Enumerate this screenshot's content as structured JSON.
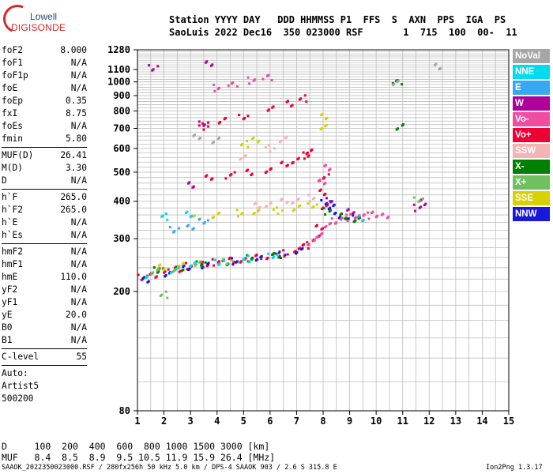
{
  "logo": {
    "line1": "Lowell",
    "line2": "DIGISONDE"
  },
  "header": {
    "line1": "Station YYYY DAY   DDD HHMMSS P1  FFS  S  AXN  PPS  IGA  PS",
    "line2": "SaoLuis 2022 Dec16  350 023000 RSF       1  715  100  00-  11"
  },
  "params": {
    "group1": [
      {
        "k": "foF2",
        "v": "8.000"
      },
      {
        "k": "foF1",
        "v": "N/A"
      },
      {
        "k": "foF1p",
        "v": "N/A"
      },
      {
        "k": "foE",
        "v": "N/A"
      },
      {
        "k": "foEp",
        "v": "0.35"
      },
      {
        "k": "fxI",
        "v": "8.75"
      },
      {
        "k": "foEs",
        "v": "N/A"
      },
      {
        "k": "fmin",
        "v": "5.80"
      }
    ],
    "group2": [
      {
        "k": "MUF(D)",
        "v": "26.41"
      },
      {
        "k": "M(D)",
        "v": "3.30"
      },
      {
        "k": "D",
        "v": "N/A"
      }
    ],
    "group3": [
      {
        "k": "h`F",
        "v": "265.0"
      },
      {
        "k": "h`F2",
        "v": "265.0"
      },
      {
        "k": "h`E",
        "v": "N/A"
      },
      {
        "k": "h`Es",
        "v": "N/A"
      }
    ],
    "group4": [
      {
        "k": "hmF2",
        "v": "N/A"
      },
      {
        "k": "hmF1",
        "v": "N/A"
      },
      {
        "k": "hmE",
        "v": "110.0"
      },
      {
        "k": "yF2",
        "v": "N/A"
      },
      {
        "k": "yF1",
        "v": "N/A"
      },
      {
        "k": "yE",
        "v": "20.0"
      },
      {
        "k": "B0",
        "v": "N/A"
      },
      {
        "k": "B1",
        "v": "N/A"
      }
    ],
    "group5": [
      {
        "k": "C-level",
        "v": "55"
      }
    ],
    "auto": [
      "Auto:",
      "Artist5",
      "500200"
    ]
  },
  "legend": [
    {
      "label": "NoVal",
      "color": "#a6a6a6"
    },
    {
      "label": "NNE",
      "color": "#00dcef"
    },
    {
      "label": "E",
      "color": "#38a8f0"
    },
    {
      "label": "W",
      "color": "#b0009c"
    },
    {
      "label": "Vo-",
      "color": "#f04ca0"
    },
    {
      "label": "Vo+",
      "color": "#ee0033"
    },
    {
      "label": "SSW",
      "color": "#f4b4b4"
    },
    {
      "label": "X-",
      "color": "#008000"
    },
    {
      "label": "X+",
      "color": "#70c060"
    },
    {
      "label": "SSE",
      "color": "#d8d000"
    },
    {
      "label": "NNW",
      "color": "#1818d8"
    }
  ],
  "footer": {
    "line1": "D     100  200  400  600  800 1000 1500 3000 [km]",
    "line2": "MUF   8.4  8.5  8.9  9.5 10.5 11.9 15.9 26.4 [MHz]",
    "info": "SAAOK_2022350023000.RSF / 280fx256h 50 kHz 5.0 km / DPS-4 SAAOK 903 / 2.6 S 315.8 E",
    "version": "Ion2Png 1.3.17"
  },
  "chart_data": {
    "type": "scatter",
    "title": "",
    "xlabel": "",
    "ylabel": "",
    "xlim": [
      1,
      15
    ],
    "ylim": [
      80,
      1280
    ],
    "y_scale": "log",
    "x_ticks": [
      1,
      2,
      3,
      4,
      5,
      6,
      7,
      8,
      9,
      10,
      11,
      12,
      13,
      14,
      15
    ],
    "x_tick_labels": [
      "1",
      "2",
      "3",
      "4",
      "5",
      "6",
      "7",
      "8",
      "9",
      "10",
      "11",
      "12",
      "13",
      "14",
      "15"
    ],
    "y_ticks": [
      80,
      200,
      300,
      400,
      500,
      600,
      700,
      800,
      900,
      1000,
      1100,
      1280
    ],
    "y_tick_labels": [
      "80",
      "200",
      "300",
      "400",
      "500",
      "600",
      "700",
      "800",
      "900",
      "1000",
      "1100",
      "1280"
    ],
    "series": [
      {
        "name": "Vo+",
        "color": "#ee0033",
        "points": [
          [
            1.2,
            222
          ],
          [
            1.6,
            228
          ],
          [
            2.0,
            233
          ],
          [
            2.5,
            238
          ],
          [
            3.0,
            243
          ],
          [
            3.5,
            247
          ],
          [
            4.0,
            250
          ],
          [
            4.5,
            253
          ],
          [
            5.0,
            256
          ],
          [
            5.5,
            259
          ],
          [
            6.0,
            263
          ],
          [
            6.5,
            268
          ],
          [
            7.0,
            275
          ],
          [
            7.4,
            285
          ],
          [
            7.7,
            300
          ],
          [
            7.9,
            330
          ],
          [
            8.0,
            380
          ],
          [
            8.0,
            430
          ],
          [
            8.05,
            480
          ],
          [
            3.7,
            480
          ],
          [
            4.5,
            488
          ],
          [
            5.2,
            497
          ],
          [
            6.0,
            510
          ],
          [
            6.5,
            528
          ],
          [
            7.0,
            548
          ],
          [
            7.3,
            568
          ],
          [
            7.5,
            585
          ],
          [
            3.5,
            710
          ],
          [
            4.2,
            740
          ],
          [
            5.0,
            770
          ],
          [
            6.0,
            808
          ],
          [
            6.8,
            850
          ],
          [
            7.2,
            880
          ]
        ]
      },
      {
        "name": "NNW",
        "color": "#1818d8",
        "points": [
          [
            1.3,
            218
          ],
          [
            2.2,
            230
          ],
          [
            2.8,
            238
          ],
          [
            3.6,
            245
          ],
          [
            4.6,
            252
          ],
          [
            5.6,
            258
          ],
          [
            6.4,
            265
          ],
          [
            7.1,
            272
          ],
          [
            8.1,
            400
          ],
          [
            8.3,
            380
          ],
          [
            8.6,
            360
          ],
          [
            9.0,
            350
          ]
        ]
      },
      {
        "name": "Vo-",
        "color": "#f04ca0",
        "points": [
          [
            7.6,
            290
          ],
          [
            7.8,
            310
          ],
          [
            8.2,
            330
          ],
          [
            8.5,
            345
          ],
          [
            8.8,
            352
          ],
          [
            9.2,
            356
          ],
          [
            9.6,
            358
          ],
          [
            10.0,
            360
          ],
          [
            10.3,
            360
          ],
          [
            8.0,
            460
          ],
          [
            8.1,
            520
          ],
          [
            4.0,
            955
          ],
          [
            4.6,
            980
          ],
          [
            5.3,
            1010
          ],
          [
            5.9,
            1030
          ]
        ]
      },
      {
        "name": "X-",
        "color": "#008000",
        "points": [
          [
            1.8,
            235
          ],
          [
            2.6,
            240
          ],
          [
            3.4,
            246
          ],
          [
            4.3,
            251
          ],
          [
            5.3,
            258
          ],
          [
            6.2,
            264
          ],
          [
            8.2,
            370
          ],
          [
            8.7,
            355
          ],
          [
            9.3,
            350
          ],
          [
            10.8,
            990
          ],
          [
            10.9,
            710
          ]
        ]
      },
      {
        "name": "SSE",
        "color": "#d8d000",
        "points": [
          [
            1.9,
            240
          ],
          [
            2.7,
            247
          ],
          [
            3.2,
            350
          ],
          [
            4.0,
            360
          ],
          [
            4.8,
            365
          ],
          [
            5.5,
            368
          ],
          [
            6.3,
            372
          ],
          [
            7.0,
            378
          ],
          [
            7.6,
            390
          ],
          [
            8.0,
            700
          ],
          [
            8.1,
            770
          ],
          [
            5.0,
            620
          ],
          [
            5.5,
            640
          ]
        ]
      },
      {
        "name": "NNE",
        "color": "#00dcef",
        "points": [
          [
            1.5,
            226
          ],
          [
            2.3,
            236
          ],
          [
            3.1,
            244
          ],
          [
            4.1,
            251
          ],
          [
            5.1,
            257
          ],
          [
            6.1,
            263
          ],
          [
            2.0,
            355
          ],
          [
            3.0,
            360
          ]
        ]
      },
      {
        "name": "W",
        "color": "#b0009c",
        "points": [
          [
            1.6,
            1110
          ],
          [
            3.7,
            1160
          ],
          [
            3.5,
            720
          ],
          [
            3.0,
            455
          ],
          [
            8.3,
            400
          ],
          [
            9.0,
            370
          ],
          [
            11.6,
            380
          ],
          [
            11.7,
            395
          ]
        ]
      },
      {
        "name": "SSW",
        "color": "#f4b4b4",
        "points": [
          [
            5.5,
            385
          ],
          [
            6.0,
            392
          ],
          [
            6.5,
            398
          ],
          [
            7.0,
            402
          ],
          [
            7.5,
            410
          ],
          [
            5.0,
            560
          ],
          [
            6.0,
            600
          ],
          [
            6.5,
            640
          ]
        ]
      },
      {
        "name": "X+",
        "color": "#70c060",
        "points": [
          [
            1.7,
            232
          ],
          [
            2.4,
            239
          ],
          [
            3.3,
            246
          ],
          [
            4.4,
            252
          ],
          [
            2.0,
            195
          ],
          [
            11.6,
            405
          ]
        ]
      },
      {
        "name": "E",
        "color": "#38a8f0",
        "points": [
          [
            2.4,
            320
          ],
          [
            3.0,
            330
          ],
          [
            3.5,
            340
          ],
          [
            9.4,
            352
          ]
        ]
      },
      {
        "name": "NoVal",
        "color": "#a6a6a6",
        "points": [
          [
            12.3,
            1120
          ],
          [
            10.8,
            1000
          ],
          [
            3.2,
            650
          ],
          [
            4.0,
            640
          ]
        ]
      }
    ]
  }
}
